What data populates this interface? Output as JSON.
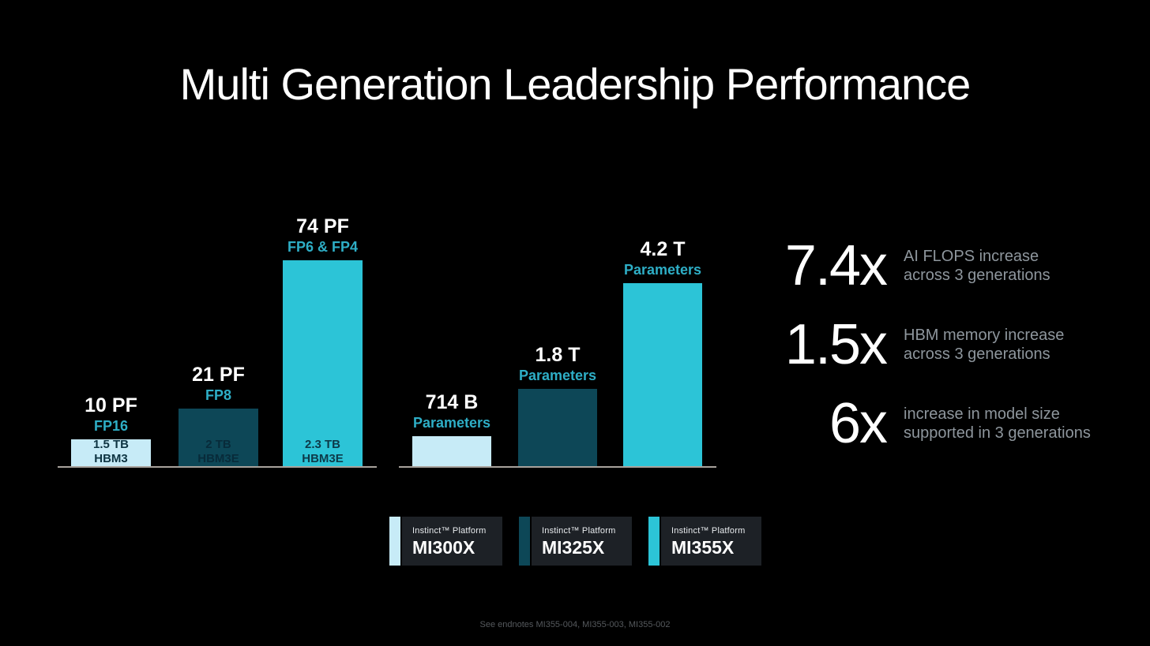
{
  "slide": {
    "title": "Multi Generation Leadership Performance",
    "footnote": "See endnotes MI355-004, MI355-003, MI355-002"
  },
  "colors": {
    "background": "#000000",
    "mi300x_light_cyan": "#c7ebf7",
    "mi325x_dark_teal": "#0d4757",
    "mi355x_bright_cyan": "#2cc4d7",
    "accent_cyan_text": "#2eaec6",
    "stat_description_gray": "#8e969d",
    "axis_line_gray": "#a8a29c",
    "legend_card_bg": "#1d2126",
    "footnote_gray": "#55595d"
  },
  "chart_data": [
    {
      "type": "bar",
      "group": "ai-flops",
      "categories": [
        "MI300X",
        "MI325X",
        "MI355X"
      ],
      "values": [
        10,
        21,
        74
      ],
      "unit": "PF",
      "bars": [
        {
          "value_label": "10 PF",
          "sub_label": "FP16",
          "inside_label": "1.5 TB\nHBM3"
        },
        {
          "value_label": "21 PF",
          "sub_label": "FP8",
          "inside_label": "2 TB\nHBM3E"
        },
        {
          "value_label": "74 PF",
          "sub_label": "FP6 & FP4",
          "inside_label": "2.3 TB\nHBM3E"
        }
      ]
    },
    {
      "type": "bar",
      "group": "model-size",
      "categories": [
        "MI300X",
        "MI325X",
        "MI355X"
      ],
      "values": [
        714,
        1800,
        4200
      ],
      "unit": "Parameters (billions)",
      "bars": [
        {
          "value_label": "714 B",
          "sub_label": "Parameters"
        },
        {
          "value_label": "1.8 T",
          "sub_label": "Parameters"
        },
        {
          "value_label": "4.2 T",
          "sub_label": "Parameters"
        }
      ]
    }
  ],
  "stats": [
    {
      "value": "7.4x",
      "description": "AI FLOPS increase\nacross 3 generations"
    },
    {
      "value": "1.5x",
      "description": "HBM memory increase\nacross 3 generations"
    },
    {
      "value": "6x",
      "description": "increase in model size\nsupported in 3 generations"
    }
  ],
  "legend": [
    {
      "prefix": "Instinct™ Platform",
      "model": "MI300X"
    },
    {
      "prefix": "Instinct™ Platform",
      "model": "MI325X"
    },
    {
      "prefix": "Instinct™ Platform",
      "model": "MI355X"
    }
  ]
}
